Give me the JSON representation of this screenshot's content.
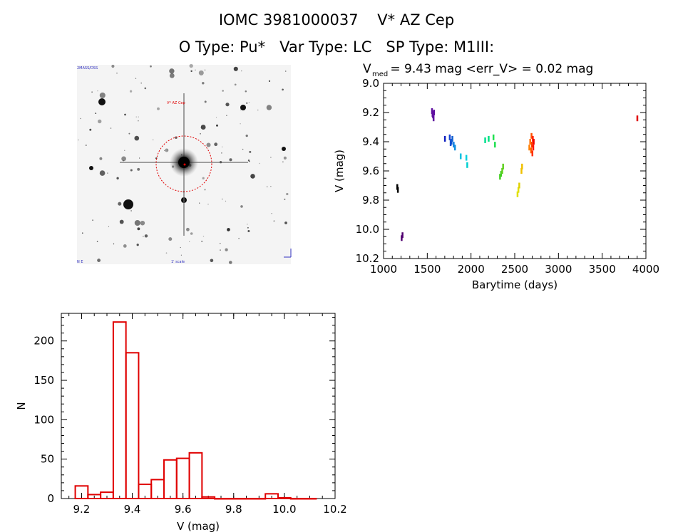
{
  "header": {
    "line1": "IOMC 3981000037    V* AZ Cep",
    "line2": "O Type: Pu*   Var Type: LC   SP Type: M1III:"
  },
  "image_panel": {
    "description": "finder-chart image (grayscale star field, target circled in red)"
  },
  "colors": {
    "histogram": "#e00000",
    "axis": "#000000",
    "circle": "#e00000"
  },
  "chart_data": [
    {
      "type": "scatter",
      "title_prefix": "V",
      "title_sub": "med",
      "title_rest": " = 9.43 mag <err_V> = 0.02 mag",
      "xlabel": "Barytime (days)",
      "ylabel": "V (mag)",
      "xlim": [
        1000,
        4000
      ],
      "ylim": [
        9.0,
        10.2
      ],
      "y_inverted": true,
      "xticks": [
        1000,
        1500,
        2000,
        2500,
        3000,
        3500,
        4000
      ],
      "yticks": [
        "9.0",
        "9.2",
        "9.4",
        "9.6",
        "9.8",
        "10.0",
        "10.2"
      ],
      "colorscale": "rainbow by time",
      "points": [
        {
          "x": 1155,
          "y": 9.71,
          "c": "#000000"
        },
        {
          "x": 1162,
          "y": 9.73,
          "c": "#000000"
        },
        {
          "x": 1205,
          "y": 10.06,
          "c": "#500070"
        },
        {
          "x": 1215,
          "y": 10.04,
          "c": "#500070"
        },
        {
          "x": 1552,
          "y": 9.19,
          "c": "#6010a0"
        },
        {
          "x": 1558,
          "y": 9.21,
          "c": "#6010a0"
        },
        {
          "x": 1564,
          "y": 9.22,
          "c": "#6010a0"
        },
        {
          "x": 1570,
          "y": 9.24,
          "c": "#6010a0"
        },
        {
          "x": 1575,
          "y": 9.2,
          "c": "#6010a0"
        },
        {
          "x": 1700,
          "y": 9.38,
          "c": "#1020c0"
        },
        {
          "x": 1755,
          "y": 9.37,
          "c": "#1040d0"
        },
        {
          "x": 1765,
          "y": 9.41,
          "c": "#1050d0"
        },
        {
          "x": 1775,
          "y": 9.4,
          "c": "#1050d0"
        },
        {
          "x": 1785,
          "y": 9.38,
          "c": "#1060d0"
        },
        {
          "x": 1800,
          "y": 9.42,
          "c": "#1080e0"
        },
        {
          "x": 1815,
          "y": 9.44,
          "c": "#1090e0"
        },
        {
          "x": 1880,
          "y": 9.5,
          "c": "#00c0e0"
        },
        {
          "x": 1945,
          "y": 9.51,
          "c": "#00d0e0"
        },
        {
          "x": 1955,
          "y": 9.56,
          "c": "#00d0d0"
        },
        {
          "x": 2160,
          "y": 9.39,
          "c": "#00e090"
        },
        {
          "x": 2200,
          "y": 9.38,
          "c": "#00e080"
        },
        {
          "x": 2255,
          "y": 9.37,
          "c": "#20e050"
        },
        {
          "x": 2272,
          "y": 9.42,
          "c": "#20e050"
        },
        {
          "x": 2330,
          "y": 9.64,
          "c": "#40d020"
        },
        {
          "x": 2342,
          "y": 9.62,
          "c": "#40d020"
        },
        {
          "x": 2355,
          "y": 9.6,
          "c": "#60d020"
        },
        {
          "x": 2365,
          "y": 9.57,
          "c": "#60d020"
        },
        {
          "x": 2530,
          "y": 9.76,
          "c": "#e0e000"
        },
        {
          "x": 2540,
          "y": 9.73,
          "c": "#e0e000"
        },
        {
          "x": 2550,
          "y": 9.7,
          "c": "#e0d000"
        },
        {
          "x": 2575,
          "y": 9.6,
          "c": "#f0c000"
        },
        {
          "x": 2582,
          "y": 9.57,
          "c": "#f0c000"
        },
        {
          "x": 2665,
          "y": 9.44,
          "c": "#ff8000"
        },
        {
          "x": 2675,
          "y": 9.4,
          "c": "#ff7000"
        },
        {
          "x": 2685,
          "y": 9.46,
          "c": "#ff6000"
        },
        {
          "x": 2690,
          "y": 9.36,
          "c": "#ff5000"
        },
        {
          "x": 2695,
          "y": 9.42,
          "c": "#ff4000"
        },
        {
          "x": 2700,
          "y": 9.48,
          "c": "#ff3000"
        },
        {
          "x": 2705,
          "y": 9.38,
          "c": "#ff2000"
        },
        {
          "x": 2710,
          "y": 9.44,
          "c": "#ff1000"
        },
        {
          "x": 2715,
          "y": 9.4,
          "c": "#f00000"
        },
        {
          "x": 3900,
          "y": 9.24,
          "c": "#e00000"
        }
      ]
    },
    {
      "type": "bar",
      "style": "histogram-outline",
      "xlabel": "V (mag)",
      "ylabel": "N",
      "xlim": [
        9.12,
        10.2
      ],
      "ylim": [
        0,
        235
      ],
      "xticks": [
        "9.2",
        "9.4",
        "9.6",
        "9.8",
        "10.0",
        "10.2"
      ],
      "yticks": [
        0,
        50,
        100,
        150,
        200
      ],
      "bin_width": 0.05,
      "bin_lefts": [
        9.175,
        9.225,
        9.275,
        9.325,
        9.375,
        9.425,
        9.475,
        9.525,
        9.575,
        9.625,
        9.675,
        9.725,
        9.775,
        9.825,
        9.875,
        9.925,
        9.975,
        10.025,
        10.075
      ],
      "values": [
        16,
        5,
        8,
        224,
        185,
        18,
        24,
        49,
        51,
        58,
        2,
        0,
        0,
        0,
        0,
        6,
        1,
        0,
        0
      ]
    }
  ]
}
